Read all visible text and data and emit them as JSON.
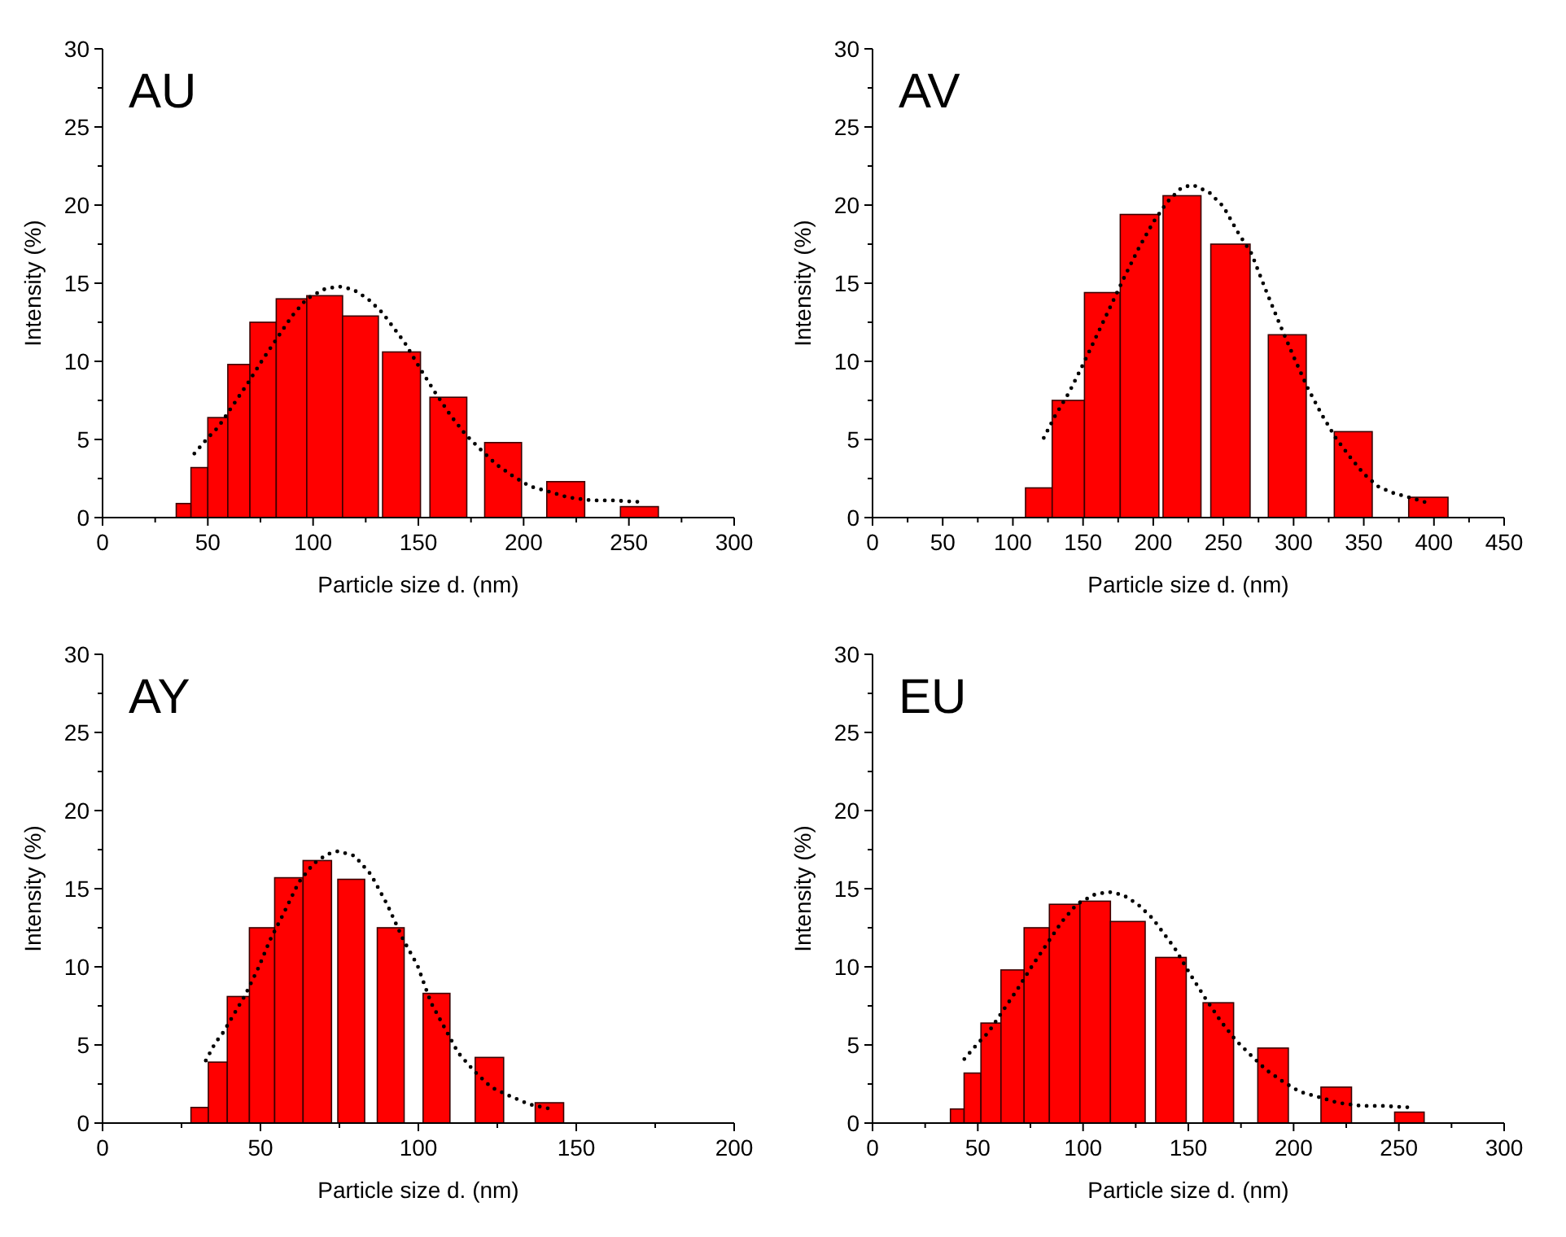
{
  "chart_data": [
    {
      "type": "histogram",
      "title": "AU",
      "xlabel": "Particle size d. (nm)",
      "ylabel": "Intensity (%)",
      "xlim": [
        0,
        300
      ],
      "ylim": [
        0,
        30
      ],
      "xticks": [
        0,
        {
          "value": 25,
          "label": null
        },
        50,
        {
          "value": 75,
          "label": null
        },
        100,
        {
          "value": 125,
          "label": null
        },
        150,
        {
          "value": 175,
          "label": null
        },
        200,
        {
          "value": 225,
          "label": null
        },
        250,
        {
          "value": 275,
          "label": null
        },
        300
      ],
      "yticks": [
        0,
        {
          "value": 2.5,
          "label": null
        },
        5,
        {
          "value": 7.5,
          "label": null
        },
        10,
        {
          "value": 12.5,
          "label": null
        },
        15,
        {
          "value": 17.5,
          "label": null
        },
        20,
        {
          "value": 22.5,
          "label": null
        },
        25,
        {
          "value": 27.5,
          "label": null
        },
        30
      ],
      "series": [
        {
          "color": "#ff0000",
          "bins": [
            35,
            42,
            50,
            59.5,
            70,
            82.5,
            97,
            114,
            131,
            133,
            151,
            155.5,
            173,
            181.5,
            199,
            211,
            229,
            246,
            264
          ],
          "values": [
            0.9,
            3.2,
            6.4,
            9.8,
            12.5,
            14,
            14.2,
            12.9,
            null,
            10.6,
            null,
            7.7,
            null,
            4.8,
            null,
            2.3,
            null,
            0.7
          ]
        },
        {
          "type": "line",
          "color": "#000000",
          "line_style": "dotted",
          "x": [
            43.6,
            50,
            55,
            62,
            69,
            76,
            83,
            90,
            97,
            105,
            112,
            119,
            126,
            133,
            143.5,
            151,
            158,
            165.5,
            172.5,
            180,
            187,
            195.5,
            203,
            211,
            221,
            232,
            242,
            255.5
          ],
          "values": [
            4.1,
            5.1,
            5.8,
            7.2,
            8.6,
            10.1,
            11.5,
            12.9,
            14,
            14.6,
            14.8,
            14.6,
            14,
            13.1,
            11.2,
            9.5,
            8,
            6.5,
            5.3,
            4.3,
            3.4,
            2.6,
            2,
            1.7,
            1.3,
            1.1,
            1.1,
            1
          ]
        }
      ]
    },
    {
      "type": "histogram",
      "title": "AV",
      "xlabel": "Particle size d. (nm)",
      "ylabel": "Intensity (%)",
      "xlim": [
        0,
        450
      ],
      "ylim": [
        0,
        30
      ],
      "xticks": [
        0,
        {
          "value": 25,
          "label": null
        },
        50,
        {
          "value": 75,
          "label": null
        },
        100,
        {
          "value": 125,
          "label": null
        },
        150,
        {
          "value": 175,
          "label": null
        },
        200,
        {
          "value": 225,
          "label": null
        },
        250,
        {
          "value": 275,
          "label": null
        },
        300,
        {
          "value": 325,
          "label": null
        },
        350,
        {
          "value": 375,
          "label": null
        },
        400,
        {
          "value": 425,
          "label": null
        },
        450
      ],
      "yticks": [
        0,
        {
          "value": 2.5,
          "label": null
        },
        5,
        {
          "value": 7.5,
          "label": null
        },
        10,
        {
          "value": 12.5,
          "label": null
        },
        15,
        {
          "value": 17.5,
          "label": null
        },
        20,
        {
          "value": 22.5,
          "label": null
        },
        25,
        {
          "value": 27.5,
          "label": null
        },
        30
      ],
      "series": [
        {
          "color": "#ff0000",
          "bins": [
            109,
            128,
            151,
            176.5,
            204,
            207,
            234,
            241,
            269,
            282,
            309,
            329,
            356,
            382,
            410
          ],
          "values": [
            1.9,
            7.5,
            14.4,
            19.4,
            null,
            20.6,
            null,
            17.5,
            null,
            11.7,
            null,
            5.5,
            null,
            1.3
          ]
        },
        {
          "type": "line",
          "color": "#000000",
          "line_style": "dotted",
          "x": [
            122,
            130,
            140,
            150,
            160,
            170,
            180,
            190,
            200,
            210,
            220,
            228,
            240,
            250,
            260,
            270,
            280,
            290,
            300,
            310,
            320,
            330,
            340,
            350,
            360,
            370,
            382,
            397
          ],
          "values": [
            5.1,
            6.5,
            8,
            9.8,
            11.7,
            13.6,
            15.5,
            17.3,
            18.9,
            20.2,
            21.1,
            21.3,
            20.8,
            19.9,
            18.3,
            16.9,
            14.6,
            12.4,
            10.3,
            8.3,
            6.6,
            5.1,
            3.9,
            2.8,
            2,
            1.6,
            1.3,
            0.9
          ]
        }
      ]
    },
    {
      "type": "histogram",
      "title": "AY",
      "xlabel": "Particle size d. (nm)",
      "ylabel": "Intensity (%)",
      "xlim": [
        0,
        200
      ],
      "ylim": [
        0,
        30
      ],
      "xticks": [
        0,
        {
          "value": 25,
          "label": null
        },
        50,
        {
          "value": 75,
          "label": null
        },
        100,
        {
          "value": 125,
          "label": null
        },
        150,
        {
          "value": 175,
          "label": null
        },
        200
      ],
      "yticks": [
        0,
        {
          "value": 2.5,
          "label": null
        },
        5,
        {
          "value": 7.5,
          "label": null
        },
        10,
        {
          "value": 12.5,
          "label": null
        },
        15,
        {
          "value": 17.5,
          "label": null
        },
        20,
        {
          "value": 22.5,
          "label": null
        },
        25,
        {
          "value": 27.5,
          "label": null
        },
        30
      ],
      "series": [
        {
          "color": "#ff0000",
          "bins": [
            28,
            33.5,
            39.5,
            46.5,
            54.5,
            63.5,
            72.5,
            74.5,
            83,
            87,
            95.5,
            101.5,
            110,
            118,
            127,
            137,
            146
          ],
          "values": [
            1,
            3.9,
            8.1,
            12.5,
            15.7,
            16.8,
            null,
            15.6,
            null,
            12.5,
            null,
            8.3,
            null,
            4.2,
            null,
            1.3
          ]
        },
        {
          "type": "line",
          "color": "#000000",
          "line_style": "dotted",
          "x": [
            32.7,
            35.6,
            38.2,
            41.7,
            45.2,
            49.5,
            53,
            57.3,
            62.1,
            66.8,
            71.1,
            74.6,
            79.8,
            85,
            90.1,
            95.3,
            99.7,
            104,
            108.3,
            112.6,
            117.8,
            123,
            128.2,
            135.1,
            142
          ],
          "values": [
            4,
            5.1,
            5.8,
            7,
            8.2,
            10,
            11.7,
            13.4,
            15.4,
            16.6,
            17.2,
            17.4,
            17.1,
            15.9,
            14,
            11.7,
            10.1,
            7.7,
            6.1,
            4.5,
            3.3,
            2.3,
            1.8,
            1.2,
            0.9
          ]
        }
      ]
    },
    {
      "type": "histogram",
      "title": "EU",
      "xlabel": "Particle size d. (nm)",
      "ylabel": "Intensity (%)",
      "xlim": [
        0,
        300
      ],
      "ylim": [
        0,
        30
      ],
      "xticks": [
        0,
        {
          "value": 25,
          "label": null
        },
        50,
        {
          "value": 75,
          "label": null
        },
        100,
        {
          "value": 125,
          "label": null
        },
        150,
        {
          "value": 175,
          "label": null
        },
        200,
        {
          "value": 225,
          "label": null
        },
        250,
        {
          "value": 275,
          "label": null
        },
        300
      ],
      "yticks": [
        0,
        {
          "value": 2.5,
          "label": null
        },
        5,
        {
          "value": 7.5,
          "label": null
        },
        10,
        {
          "value": 12.5,
          "label": null
        },
        15,
        {
          "value": 17.5,
          "label": null
        },
        20,
        {
          "value": 22.5,
          "label": null
        },
        25,
        {
          "value": 27.5,
          "label": null
        },
        30
      ],
      "series": [
        {
          "color": "#ff0000",
          "bins": [
            37,
            43.5,
            51.5,
            61,
            72,
            84,
            98.5,
            113,
            129.5,
            134.5,
            149,
            157,
            171.5,
            183,
            197.5,
            213,
            227.5,
            248,
            262
          ],
          "values": [
            0.9,
            3.2,
            6.4,
            9.8,
            12.5,
            14,
            14.2,
            12.9,
            null,
            10.6,
            null,
            7.7,
            null,
            4.8,
            null,
            2.3,
            null,
            0.7
          ]
        },
        {
          "type": "line",
          "color": "#000000",
          "line_style": "dotted",
          "x": [
            43.6,
            50,
            55,
            62,
            69,
            76,
            83,
            90,
            97,
            105,
            112,
            119,
            126,
            133,
            143.5,
            151,
            158,
            165.5,
            172.5,
            180,
            187,
            195.5,
            203,
            211,
            221,
            232,
            242,
            255.5
          ],
          "values": [
            4.1,
            5.1,
            5.8,
            7.2,
            8.6,
            10.1,
            11.5,
            12.9,
            14,
            14.6,
            14.8,
            14.6,
            14,
            13.1,
            11.2,
            9.5,
            8,
            6.5,
            5.3,
            4.3,
            3.4,
            2.6,
            2,
            1.7,
            1.3,
            1.1,
            1.1,
            1
          ]
        }
      ]
    }
  ]
}
